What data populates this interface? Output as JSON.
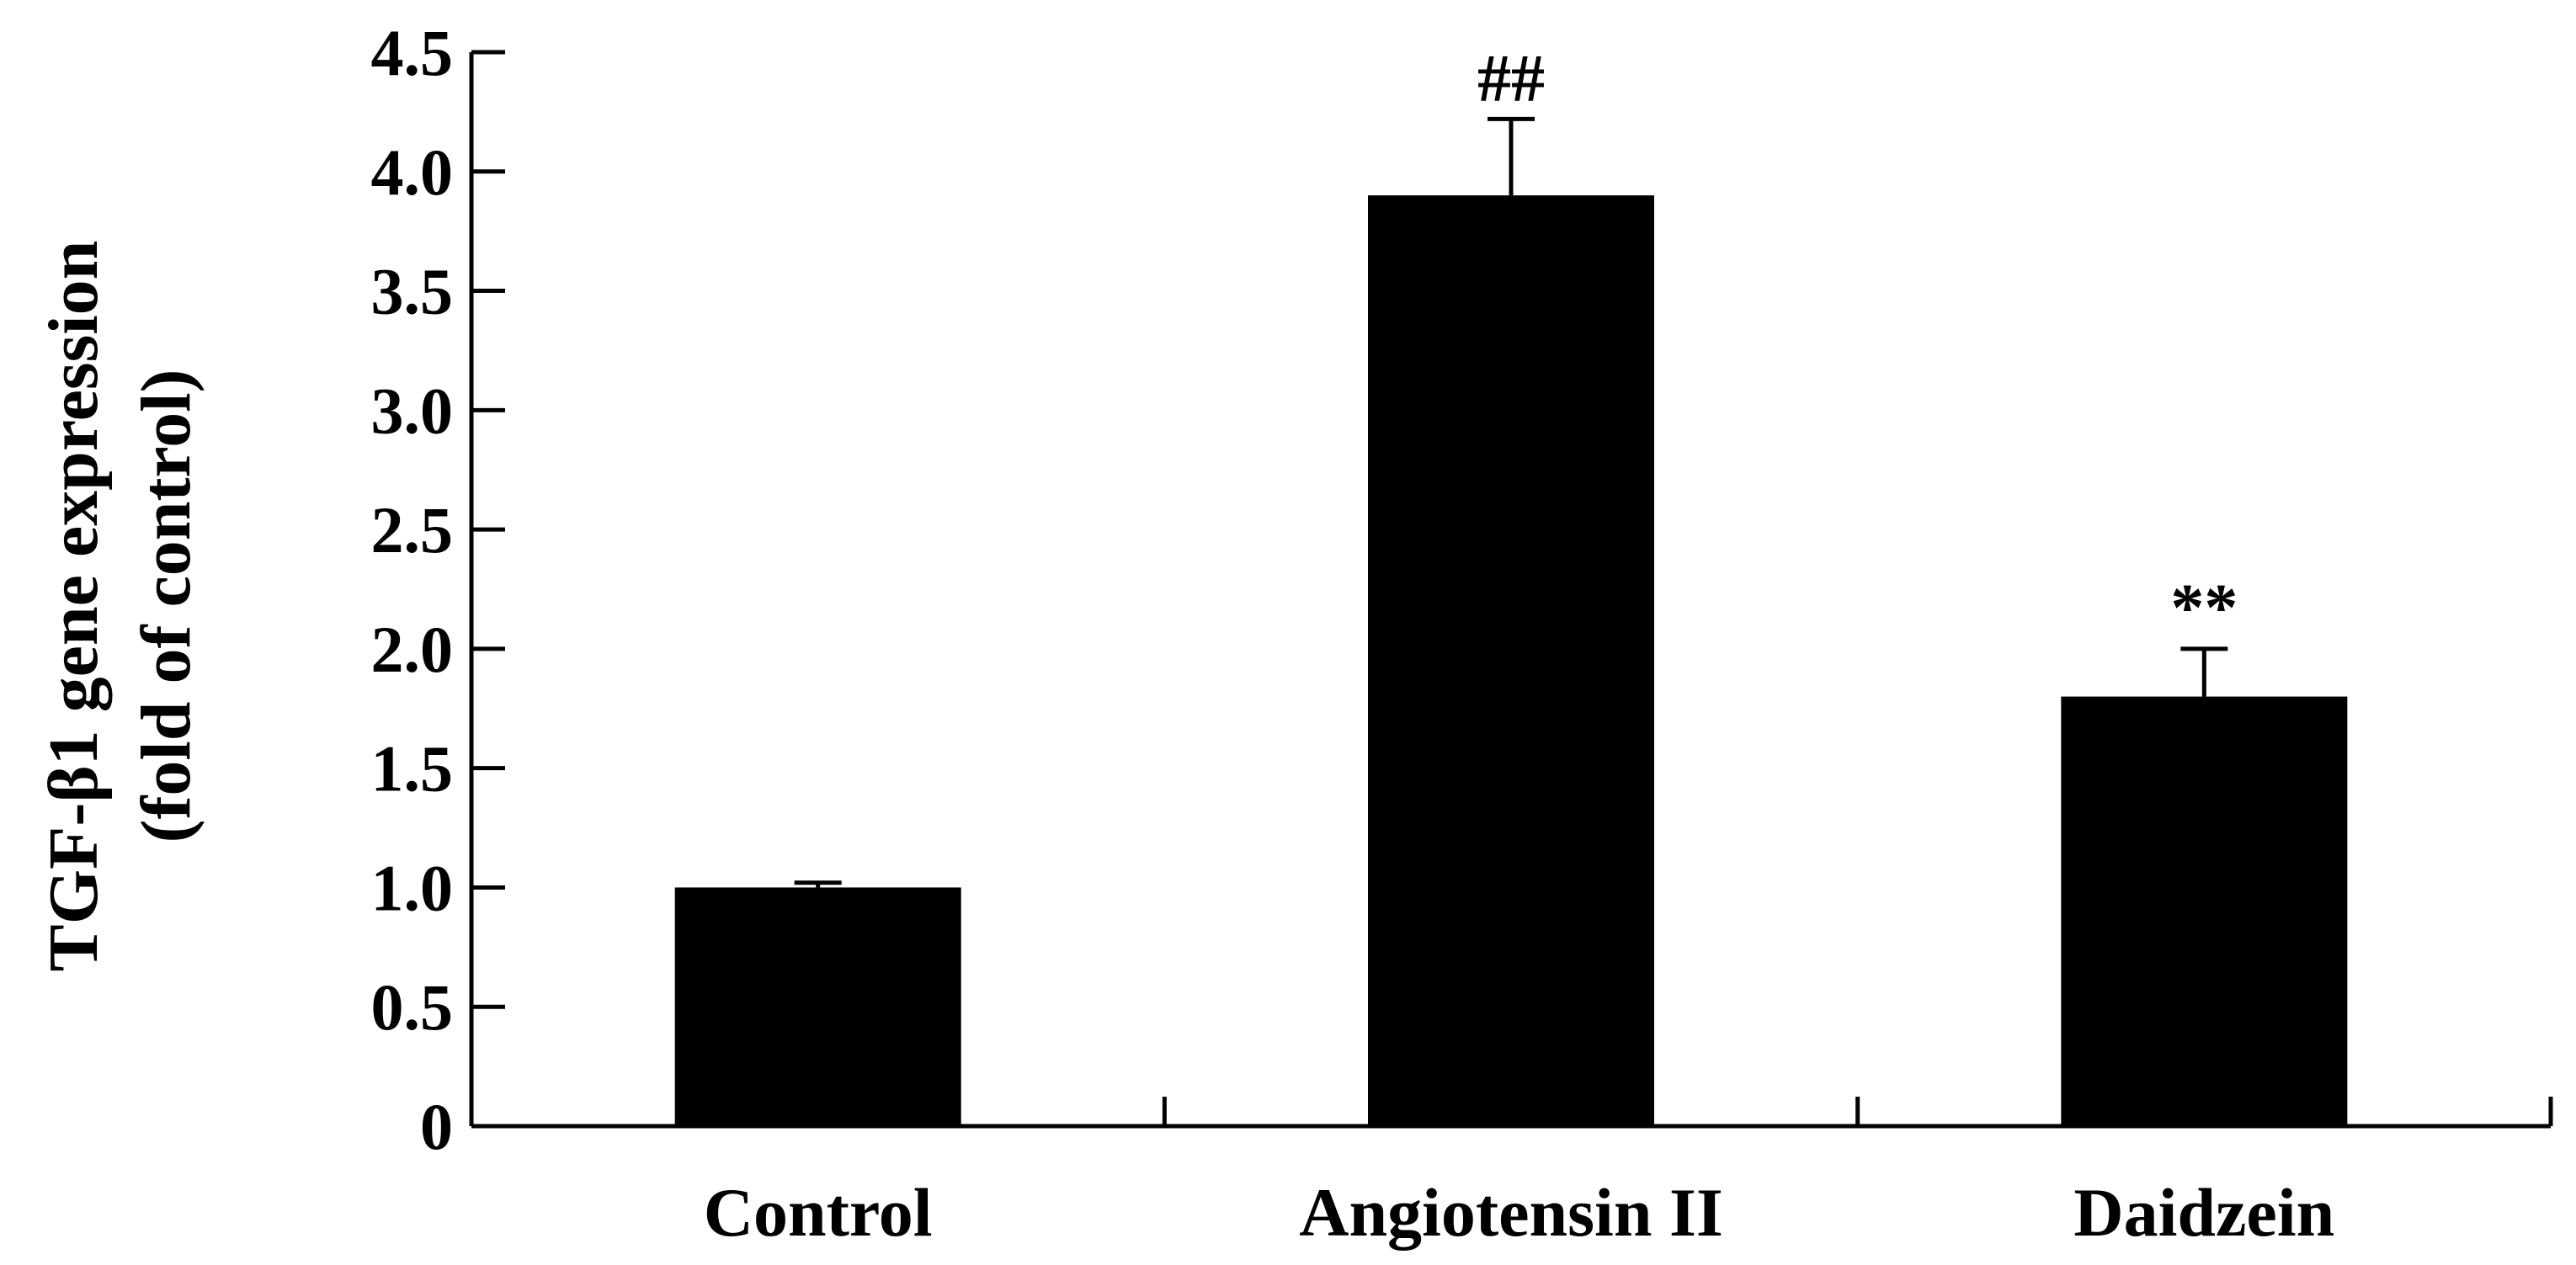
{
  "chart_data": {
    "type": "bar",
    "title": "",
    "xlabel": "",
    "ylabel_lines": [
      "TGF-β1 gene expression",
      "(fold of control)"
    ],
    "categories": [
      "Control",
      "Angiotensin II",
      "Daidzein"
    ],
    "values": [
      1.0,
      3.9,
      1.8
    ],
    "errors": [
      0.02,
      0.32,
      0.2
    ],
    "annotations": [
      "",
      "##",
      "**"
    ],
    "ylim": [
      0,
      4.5
    ],
    "yticks": [
      0,
      0.5,
      1.0,
      1.5,
      2.0,
      2.5,
      3.0,
      3.5,
      4.0,
      4.5
    ],
    "ytick_labels": [
      "0",
      "0.5",
      "1.0",
      "1.5",
      "2.0",
      "2.5",
      "3.0",
      "3.5",
      "4.0",
      "4.5"
    ],
    "grid": false,
    "legend": "none",
    "bar_color": "#000000"
  }
}
